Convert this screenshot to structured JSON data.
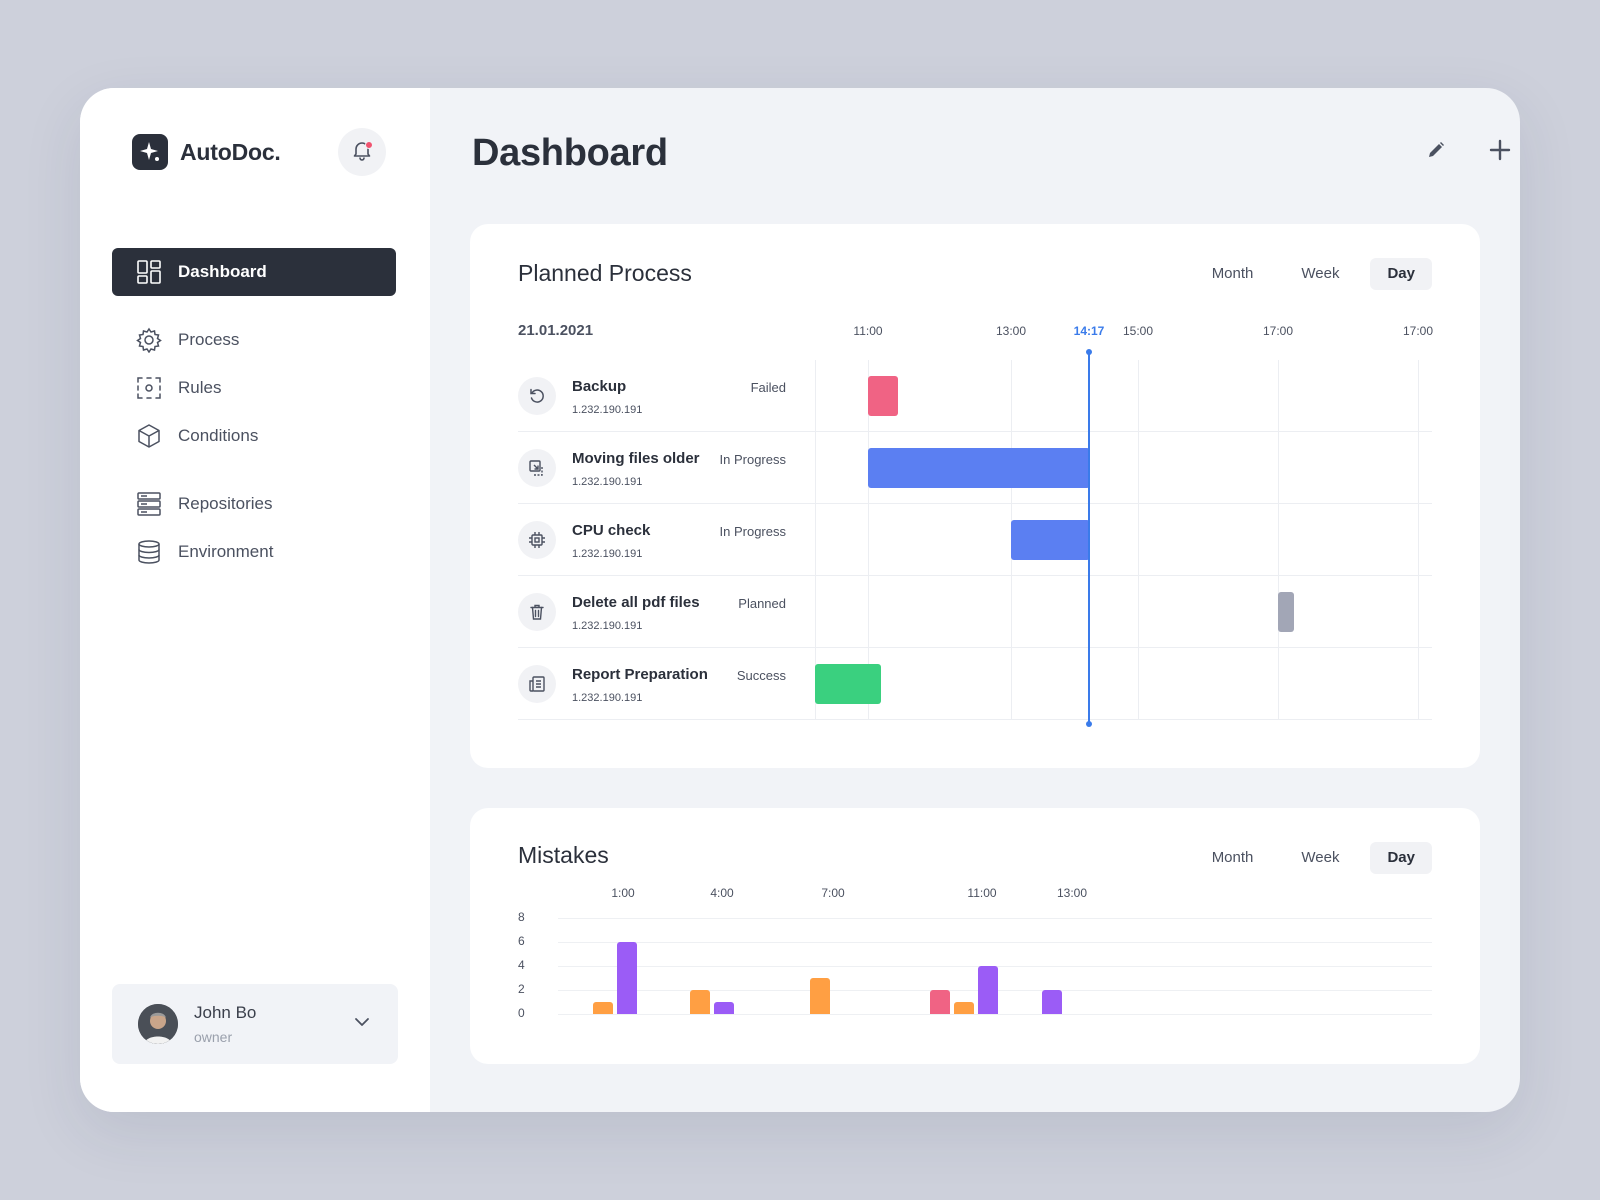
{
  "app": {
    "name": "AutoDoc."
  },
  "sidebar": {
    "items": [
      {
        "label": "Dashboard",
        "icon": "dashboard-icon",
        "active": true
      },
      {
        "label": "Process",
        "icon": "gear-icon",
        "active": false
      },
      {
        "label": "Rules",
        "icon": "rules-icon",
        "active": false
      },
      {
        "label": "Conditions",
        "icon": "cube-icon",
        "active": false
      },
      {
        "label": "Repositories",
        "icon": "server-icon",
        "active": false
      },
      {
        "label": "Environment",
        "icon": "database-icon",
        "active": false
      }
    ],
    "user": {
      "name": "John Bo",
      "role": "owner"
    }
  },
  "header": {
    "title": "Dashboard"
  },
  "colors": {
    "failed": "#f06384",
    "in_progress": "#5b7ff2",
    "planned": "#a2a6b6",
    "success": "#3ad07f",
    "now_line": "#3a7bea",
    "orange": "#ff9f43",
    "purple": "#9b5cf6",
    "pink": "#f06384"
  },
  "planned": {
    "title": "Planned Process",
    "date": "21.01.2021",
    "periods": [
      "Month",
      "Week",
      "Day"
    ],
    "active_period": "Day",
    "time_labels": [
      "11:00",
      "13:00",
      "14:17",
      "15:00",
      "17:00",
      "17:00"
    ],
    "now_label": "14:17",
    "rows": [
      {
        "name": "Backup",
        "ip": "1.232.190.191",
        "status": "Failed",
        "icon": "refresh-icon"
      },
      {
        "name": "Moving files older",
        "ip": "1.232.190.191",
        "status": "In Progress",
        "icon": "move-file-icon"
      },
      {
        "name": "CPU check",
        "ip": "1.232.190.191",
        "status": "In Progress",
        "icon": "cpu-icon"
      },
      {
        "name": "Delete all pdf files",
        "ip": "1.232.190.191",
        "status": "Planned",
        "icon": "trash-icon"
      },
      {
        "name": "Report Preparation",
        "ip": "1.232.190.191",
        "status": "Success",
        "icon": "report-icon"
      }
    ]
  },
  "mistakes": {
    "title": "Mistakes",
    "periods": [
      "Month",
      "Week",
      "Day"
    ],
    "active_period": "Day",
    "chart_data": {
      "type": "bar",
      "categories": [
        "1:00",
        "4:00",
        "7:00",
        "11:00",
        "13:00"
      ],
      "y_ticks": [
        "8",
        "6",
        "4",
        "2",
        "0"
      ],
      "ylim": [
        0,
        8
      ],
      "groups": [
        {
          "label": "1:00",
          "bars": [
            {
              "value": 1,
              "color": "orange"
            },
            {
              "value": 6,
              "color": "purple"
            }
          ]
        },
        {
          "label": "4:00",
          "bars": [
            {
              "value": 2,
              "color": "orange"
            },
            {
              "value": 1,
              "color": "purple"
            }
          ]
        },
        {
          "label": "7:00",
          "bars": [
            {
              "value": 3,
              "color": "orange"
            }
          ]
        },
        {
          "label": "11:00",
          "bars": [
            {
              "value": 2,
              "color": "pink"
            },
            {
              "value": 1,
              "color": "orange"
            },
            {
              "value": 4,
              "color": "purple"
            }
          ]
        },
        {
          "label": "13:00",
          "bars": [
            {
              "value": 2,
              "color": "purple"
            }
          ]
        }
      ]
    }
  }
}
